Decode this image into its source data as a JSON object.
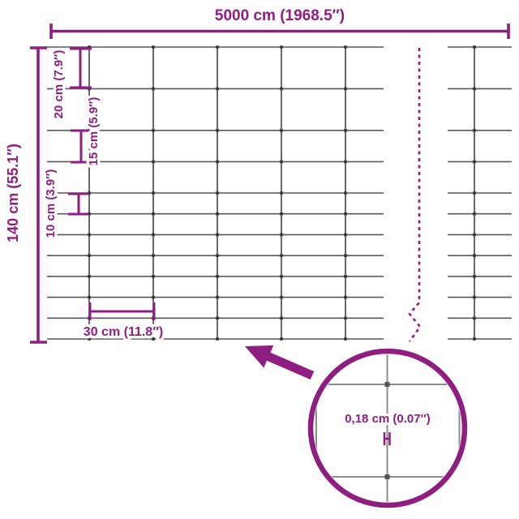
{
  "product_diagram": {
    "total_width_label": "5000 cm (1968.5″)",
    "total_height_label": "140 cm (55.1″)",
    "top_row_spacing_label": "20 cm (7.9″)",
    "middle_row_spacing_label": "15 cm (5.9″)",
    "bottom_row_spacing_label": "10 cm (3.9″)",
    "column_spacing_label": "30 cm (11.8″)",
    "wire_thickness_label": "0,18 cm (0.07″)"
  },
  "mesh": {
    "rows_cm": [
      20,
      20,
      15,
      15,
      10,
      10,
      10,
      10,
      10,
      10,
      10
    ],
    "column_spacing_cm": 30,
    "total_height_cm": 140,
    "total_width_cm": 5000,
    "wire_thickness_cm": 0.18
  },
  "colors": {
    "accent_purple": "#8E1E80",
    "wire_gray": "#58585C",
    "knot_gray": "#35353A",
    "magnifier_wire_gray": "#8C8C8C"
  }
}
